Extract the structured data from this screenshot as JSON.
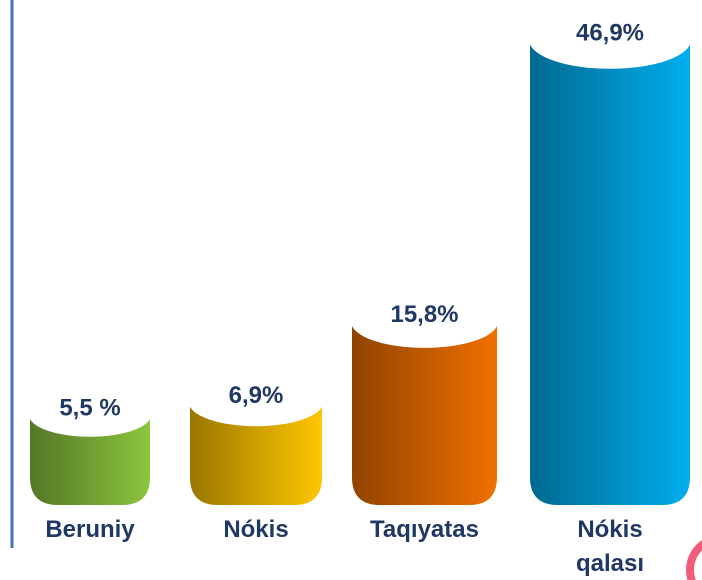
{
  "chart_data": {
    "type": "bar",
    "categories": [
      "Beruniy",
      "Nókis",
      "Taqıyatas",
      "Nókis qalası"
    ],
    "values": [
      5.5,
      6.9,
      15.8,
      46.9
    ],
    "value_labels": [
      "5,5 %",
      "6,9%",
      "15,8%",
      "46,9%"
    ],
    "colors": [
      "#8cc63f",
      "#ffc600",
      "#f07000",
      "#00aeef"
    ]
  }
}
